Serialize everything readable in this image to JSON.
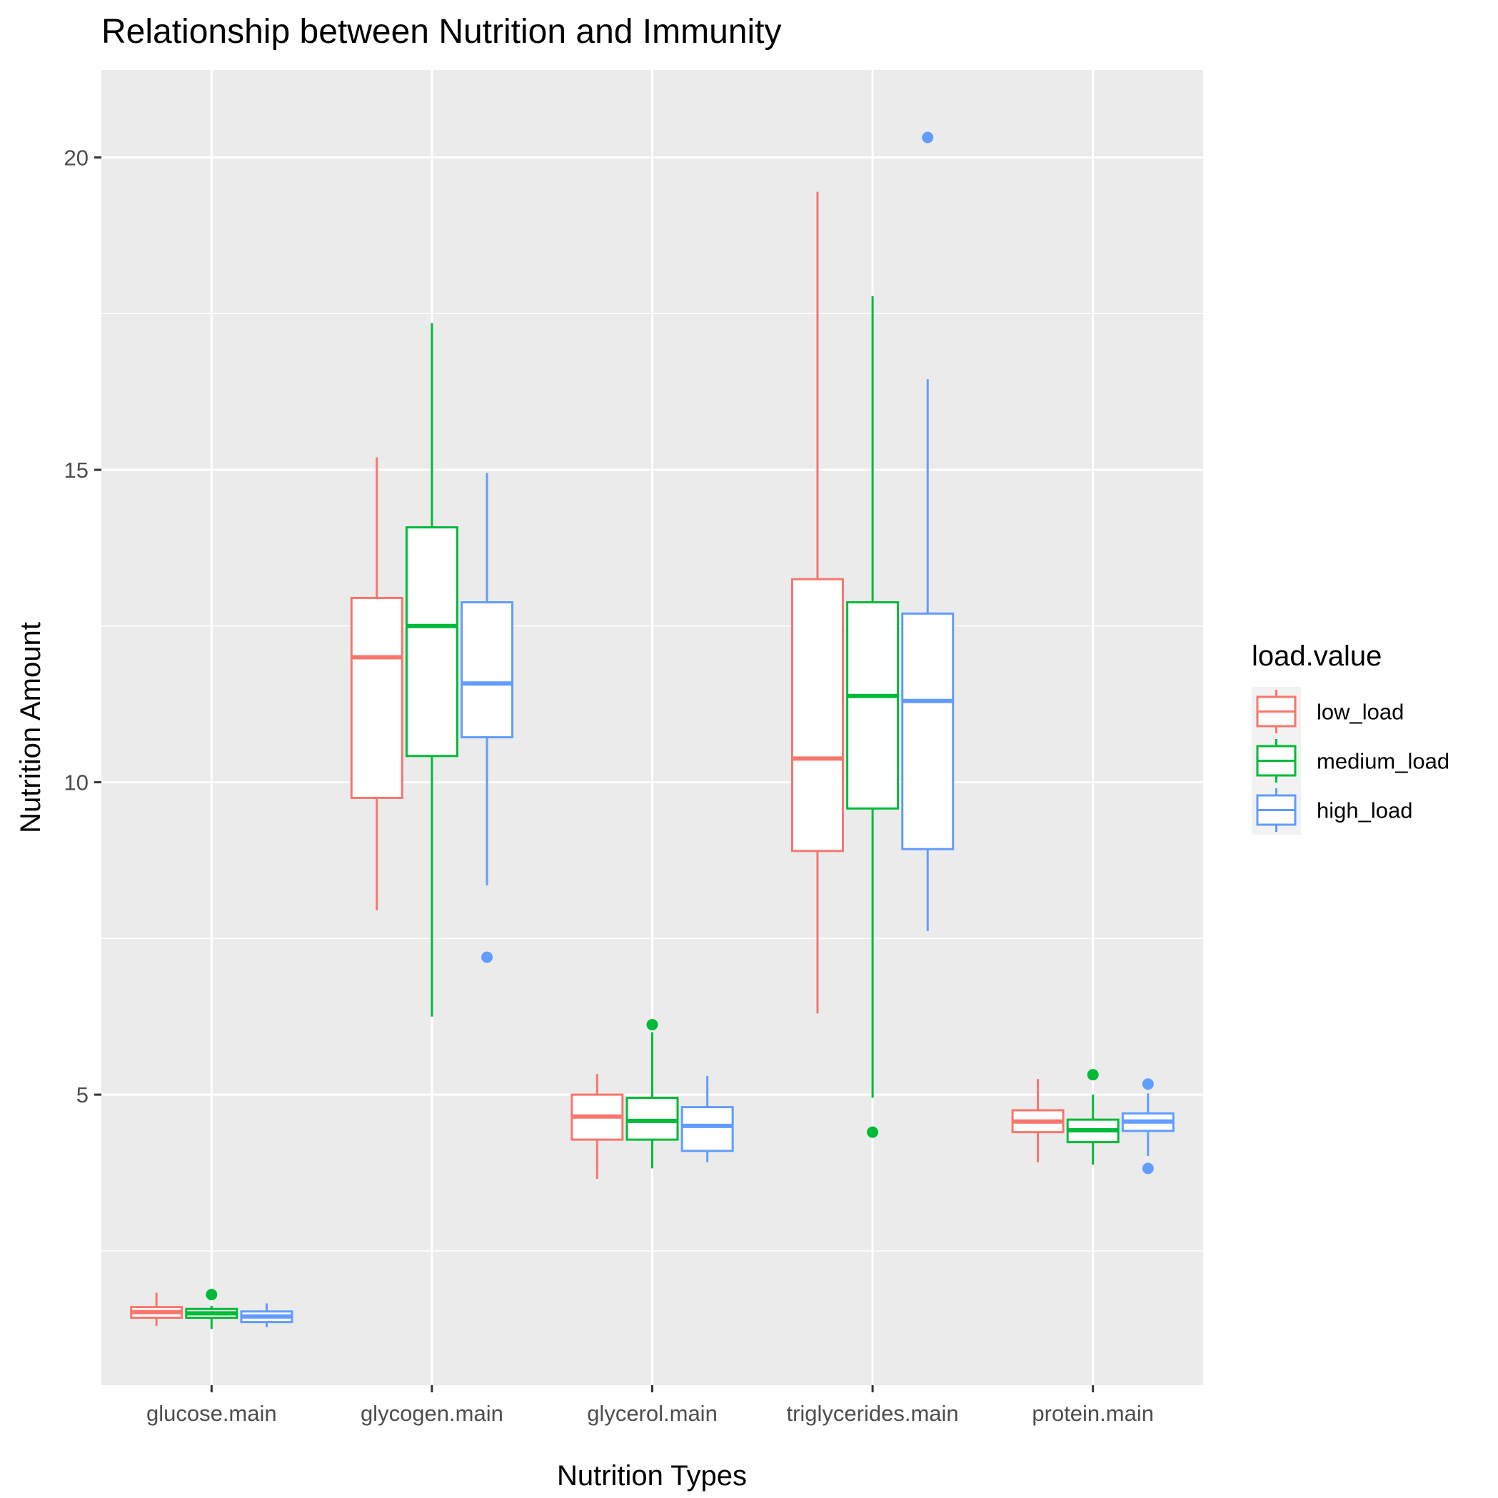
{
  "chart_data": {
    "type": "boxplot",
    "title": "Relationship between Nutrition and Immunity",
    "xlabel": "Nutrition Types",
    "ylabel": "Nutrition Amount",
    "ylim": [
      0.35,
      21.4
    ],
    "yticks": [
      5,
      10,
      15,
      20
    ],
    "categories": [
      "glucose.main",
      "glycogen.main",
      "glycerol.main",
      "triglycerides.main",
      "protein.main"
    ],
    "legend": {
      "title": "load.value",
      "position": "right"
    },
    "series": [
      {
        "name": "low_load",
        "color": "#F8766D",
        "boxes": [
          {
            "lower_whisker": 1.3,
            "q1": 1.43,
            "median": 1.52,
            "q3": 1.6,
            "upper_whisker": 1.83,
            "outliers": []
          },
          {
            "lower_whisker": 7.95,
            "q1": 9.75,
            "median": 12.0,
            "q3": 12.95,
            "upper_whisker": 15.2,
            "outliers": []
          },
          {
            "lower_whisker": 3.65,
            "q1": 4.28,
            "median": 4.65,
            "q3": 5.0,
            "upper_whisker": 5.33,
            "outliers": []
          },
          {
            "lower_whisker": 6.3,
            "q1": 8.9,
            "median": 10.38,
            "q3": 13.25,
            "upper_whisker": 19.45,
            "outliers": []
          },
          {
            "lower_whisker": 3.92,
            "q1": 4.4,
            "median": 4.57,
            "q3": 4.75,
            "upper_whisker": 5.25,
            "outliers": []
          }
        ]
      },
      {
        "name": "medium_load",
        "color": "#00BA38",
        "boxes": [
          {
            "lower_whisker": 1.25,
            "q1": 1.43,
            "median": 1.5,
            "q3": 1.57,
            "upper_whisker": 1.62,
            "outliers": [
              1.8
            ]
          },
          {
            "lower_whisker": 6.25,
            "q1": 10.42,
            "median": 12.5,
            "q3": 14.08,
            "upper_whisker": 17.35,
            "outliers": []
          },
          {
            "lower_whisker": 3.82,
            "q1": 4.28,
            "median": 4.58,
            "q3": 4.95,
            "upper_whisker": 6.0,
            "outliers": [
              6.12
            ]
          },
          {
            "lower_whisker": 4.95,
            "q1": 9.58,
            "median": 11.38,
            "q3": 12.88,
            "upper_whisker": 17.78,
            "outliers": [
              4.4
            ]
          },
          {
            "lower_whisker": 3.88,
            "q1": 4.24,
            "median": 4.43,
            "q3": 4.6,
            "upper_whisker": 5.0,
            "outliers": [
              5.32
            ]
          }
        ]
      },
      {
        "name": "high_load",
        "color": "#619CFF",
        "boxes": [
          {
            "lower_whisker": 1.28,
            "q1": 1.36,
            "median": 1.45,
            "q3": 1.53,
            "upper_whisker": 1.66,
            "outliers": []
          },
          {
            "lower_whisker": 8.35,
            "q1": 10.72,
            "median": 11.58,
            "q3": 12.88,
            "upper_whisker": 14.95,
            "outliers": [
              7.2
            ]
          },
          {
            "lower_whisker": 3.92,
            "q1": 4.1,
            "median": 4.5,
            "q3": 4.8,
            "upper_whisker": 5.3,
            "outliers": []
          },
          {
            "lower_whisker": 7.62,
            "q1": 8.93,
            "median": 11.3,
            "q3": 12.7,
            "upper_whisker": 16.45,
            "outliers": [
              20.32
            ]
          },
          {
            "lower_whisker": 4.02,
            "q1": 4.42,
            "median": 4.57,
            "q3": 4.7,
            "upper_whisker": 5.02,
            "outliers": [
              3.82,
              5.17
            ]
          }
        ]
      }
    ],
    "grid": true,
    "panel_background": "#EBEBEB"
  }
}
